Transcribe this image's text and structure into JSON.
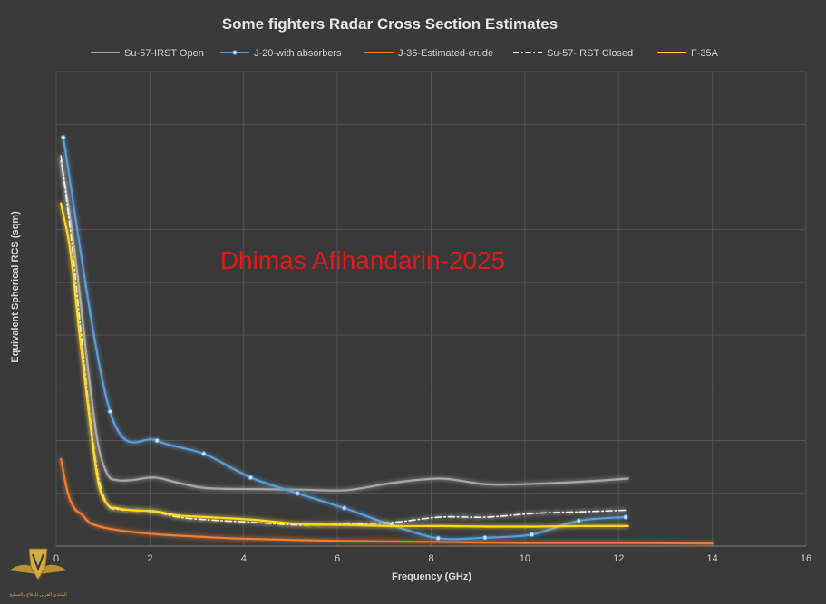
{
  "chart_data": {
    "type": "line",
    "title": "Some fighters Radar Cross Section Estimates",
    "xlabel": "Frequency (GHz)",
    "ylabel": "Equivalent Spherical RCS (sqm)",
    "xlim": [
      0,
      16
    ],
    "ylim": [
      0,
      9
    ],
    "x_ticks": [
      "0",
      "2",
      "4",
      "6",
      "8",
      "10",
      "12",
      "14",
      "16"
    ],
    "grid": true,
    "legend_position": "top",
    "watermark": "Dhimas Afihandarin-2025",
    "series": [
      {
        "name": "Su-57-IRST Open",
        "color": "#a6a6a6",
        "style": "solid",
        "markers": false,
        "x": [
          0.1,
          0.3,
          0.5,
          0.7,
          0.9,
          1.1,
          1.3,
          1.6,
          2.1,
          2.6,
          3.2,
          4.2,
          5.2,
          6.2,
          7.2,
          8.2,
          9.2,
          10.2,
          11.2,
          12.2
        ],
        "y": [
          7.3,
          6.2,
          4.8,
          3.2,
          1.9,
          1.35,
          1.25,
          1.25,
          1.3,
          1.2,
          1.1,
          1.08,
          1.07,
          1.06,
          1.2,
          1.28,
          1.17,
          1.18,
          1.22,
          1.28
        ]
      },
      {
        "name": "J-20-with absorbers",
        "color": "#5b9bd5",
        "style": "solid",
        "markers": true,
        "x": [
          0.15,
          1.15,
          2.15,
          3.15,
          4.15,
          5.15,
          6.15,
          7.15,
          8.15,
          9.15,
          10.15,
          11.15,
          12.15
        ],
        "y": [
          7.75,
          2.55,
          2.0,
          1.75,
          1.3,
          1.0,
          0.72,
          0.4,
          0.15,
          0.16,
          0.22,
          0.48,
          0.55
        ]
      },
      {
        "name": "J-36-Estimated-crude",
        "color": "#ed7d31",
        "style": "solid",
        "markers": false,
        "x": [
          0.1,
          0.25,
          0.4,
          0.55,
          0.7,
          0.9,
          1.2,
          1.6,
          2.2,
          3.0,
          4.0,
          6.0,
          8.0,
          10.0,
          12.0,
          14.0
        ],
        "y": [
          1.65,
          1.0,
          0.7,
          0.6,
          0.45,
          0.38,
          0.32,
          0.27,
          0.22,
          0.18,
          0.14,
          0.1,
          0.08,
          0.06,
          0.06,
          0.05
        ]
      },
      {
        "name": "Su-57-IRST Closed",
        "color": "#f2f2f2",
        "style": "dashdot",
        "markers": false,
        "x": [
          0.1,
          0.3,
          0.5,
          0.7,
          0.9,
          1.1,
          1.3,
          1.6,
          2.1,
          2.6,
          3.2,
          4.2,
          5.2,
          6.2,
          7.2,
          8.2,
          9.2,
          10.2,
          11.2,
          12.2
        ],
        "y": [
          7.4,
          6.0,
          4.3,
          2.6,
          1.3,
          0.78,
          0.7,
          0.68,
          0.65,
          0.55,
          0.5,
          0.45,
          0.4,
          0.42,
          0.45,
          0.55,
          0.55,
          0.62,
          0.65,
          0.68
        ]
      },
      {
        "name": "F-35A",
        "color": "#ffd727",
        "style": "solid",
        "markers": false,
        "x": [
          0.1,
          0.3,
          0.5,
          0.7,
          0.9,
          1.1,
          1.3,
          1.6,
          2.1,
          2.6,
          3.2,
          4.2,
          5.2,
          6.2,
          7.2,
          8.2,
          9.2,
          10.2,
          11.2,
          12.2
        ],
        "y": [
          6.5,
          5.6,
          4.0,
          2.5,
          1.2,
          0.78,
          0.72,
          0.68,
          0.66,
          0.58,
          0.55,
          0.5,
          0.42,
          0.4,
          0.38,
          0.38,
          0.37,
          0.37,
          0.38,
          0.38
        ]
      }
    ]
  },
  "logo": {
    "caption": "المنتدى العربي للدفاع والتسليح"
  }
}
